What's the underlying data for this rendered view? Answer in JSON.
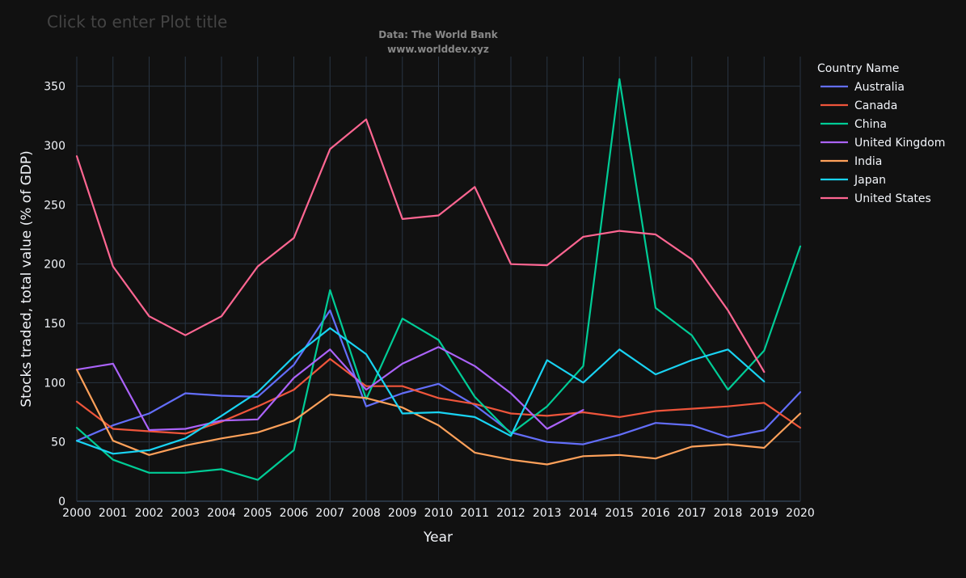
{
  "header": {
    "plot_title_placeholder": "Click to enter Plot title",
    "source_line_1": "Data: The World Bank",
    "source_line_2": "www.worlddev.xyz"
  },
  "colors": {
    "background": "#111111",
    "grid": "#283442",
    "text": "#f2f5fa"
  },
  "chart_data": {
    "type": "line",
    "title": "",
    "xlabel": "Year",
    "ylabel": "Stocks traded, total value (% of GDP)",
    "xlim": [
      2000,
      2020
    ],
    "ylim": [
      0,
      375
    ],
    "yticks": [
      0,
      50,
      100,
      150,
      200,
      250,
      300,
      350
    ],
    "grid": true,
    "legend_title": "Country Name",
    "legend_position": "right",
    "x": [
      2000,
      2001,
      2002,
      2003,
      2004,
      2005,
      2006,
      2007,
      2008,
      2009,
      2010,
      2011,
      2012,
      2013,
      2014,
      2015,
      2016,
      2017,
      2018,
      2019,
      2020
    ],
    "series": [
      {
        "name": "Australia",
        "color": "#636efa",
        "values": [
          51,
          64,
          74,
          91,
          89,
          88,
          115,
          161,
          80,
          91,
          99,
          81,
          58,
          50,
          48,
          56,
          66,
          64,
          54,
          60,
          92
        ]
      },
      {
        "name": "Canada",
        "color": "#ef553b",
        "values": [
          84,
          61,
          59,
          57,
          67,
          80,
          94,
          120,
          97,
          97,
          87,
          82,
          74,
          72,
          75,
          71,
          76,
          78,
          80,
          83,
          62
        ]
      },
      {
        "name": "China",
        "color": "#00cc96",
        "values": [
          62,
          35,
          24,
          24,
          27,
          18,
          43,
          178,
          86,
          154,
          136,
          88,
          57,
          80,
          114,
          356,
          163,
          140,
          94,
          127,
          215
        ]
      },
      {
        "name": "United Kingdom",
        "color": "#ab63fa",
        "values": [
          111,
          116,
          60,
          61,
          68,
          69,
          104,
          128,
          94,
          116,
          130,
          114,
          91,
          61,
          77,
          null,
          null,
          null,
          null,
          null,
          null
        ]
      },
      {
        "name": "India",
        "color": "#ffa15a",
        "values": [
          111,
          51,
          39,
          47,
          53,
          58,
          68,
          90,
          87,
          79,
          64,
          41,
          35,
          31,
          38,
          39,
          36,
          46,
          48,
          45,
          74
        ]
      },
      {
        "name": "Japan",
        "color": "#19d3f3",
        "values": [
          51,
          40,
          43,
          53,
          72,
          92,
          122,
          146,
          124,
          74,
          75,
          71,
          55,
          119,
          100,
          128,
          107,
          119,
          128,
          101,
          null
        ]
      },
      {
        "name": "United States",
        "color": "#ff6692",
        "values": [
          291,
          198,
          156,
          140,
          156,
          198,
          222,
          297,
          322,
          238,
          241,
          265,
          200,
          199,
          223,
          228,
          225,
          204,
          161,
          109,
          null
        ]
      }
    ]
  }
}
